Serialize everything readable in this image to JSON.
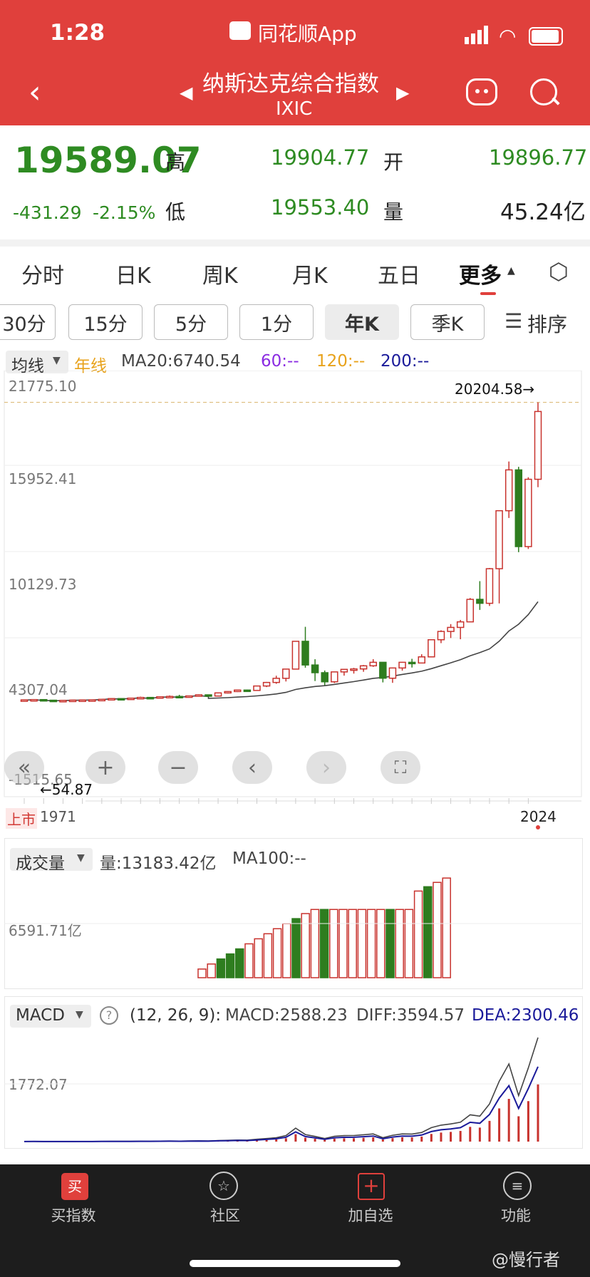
{
  "status": {
    "time": "1:28",
    "app": "同花顺App"
  },
  "header": {
    "title": "纳斯达克综合指数",
    "code": "IXIC"
  },
  "quote": {
    "price": "19589.07",
    "change": "-431.29",
    "pct": "-2.15%",
    "high_label": "高",
    "high": "19904.77",
    "low_label": "低",
    "low": "19553.40",
    "open_label": "开",
    "open": "19896.77",
    "vol_label": "量",
    "vol": "45.24亿"
  },
  "tabs": [
    "分时",
    "日K",
    "周K",
    "月K",
    "五日",
    "更多"
  ],
  "chips": [
    "30分",
    "15分",
    "5分",
    "1分",
    "年K",
    "季K"
  ],
  "sort_label": "排序",
  "ma": {
    "dropdown": "均线",
    "period": "年线",
    "ma20": "MA20:6740.54",
    "ma60": "60:--",
    "ma120": "120:--",
    "ma200": "200:--"
  },
  "kline": {
    "y_labels": [
      "21775.10",
      "15952.41",
      "10129.73",
      "4307.04",
      "-1515.65"
    ],
    "max_label": "20204.58→",
    "min_label": "←54.87",
    "ipo_label": "上市",
    "start_year": "1971",
    "end_year": "2024"
  },
  "volume": {
    "dropdown": "成交量",
    "label": "量:13183.42亿",
    "ma100": "MA100:--",
    "y_label": "6591.71亿"
  },
  "macd": {
    "dropdown": "MACD",
    "params": "(12, 26, 9):",
    "macd": "MACD:2588.23",
    "diff": "DIFF:3594.57",
    "dea": "DEA:2300.46",
    "y_label": "1772.07"
  },
  "nav": [
    {
      "label": "买指数",
      "icon": "buy-icon"
    },
    {
      "label": "社区",
      "icon": "community-icon"
    },
    {
      "label": "加自选",
      "icon": "add-watchlist-icon"
    },
    {
      "label": "功能",
      "icon": "menu-icon"
    }
  ],
  "watermark": "@慢行者",
  "colors": {
    "up": "#c8322d",
    "down": "#2e7d1f",
    "header": "#e0403c"
  },
  "chart_data": [
    {
      "type": "candlestick",
      "title": "年K",
      "x_range": [
        "1971",
        "2024"
      ],
      "ylim": [
        -1515.65,
        21775.1
      ],
      "max_marker": 20204.58,
      "min_marker": 54.87,
      "candles": [
        [
          1971,
          100,
          114,
          100,
          114
        ],
        [
          1972,
          114,
          134,
          114,
          134
        ],
        [
          1973,
          134,
          136,
          92,
          92
        ],
        [
          1974,
          92,
          92,
          55,
          60
        ],
        [
          1975,
          60,
          78,
          60,
          78
        ],
        [
          1976,
          78,
          98,
          78,
          98
        ],
        [
          1977,
          98,
          106,
          98,
          106
        ],
        [
          1978,
          106,
          120,
          106,
          118
        ],
        [
          1979,
          118,
          150,
          118,
          151
        ],
        [
          1980,
          151,
          208,
          151,
          202
        ],
        [
          1981,
          202,
          223,
          180,
          196
        ],
        [
          1982,
          196,
          240,
          160,
          232
        ],
        [
          1983,
          232,
          329,
          229,
          279
        ],
        [
          1984,
          279,
          288,
          225,
          247
        ],
        [
          1985,
          247,
          325,
          246,
          325
        ],
        [
          1986,
          325,
          411,
          323,
          349
        ],
        [
          1987,
          349,
          456,
          291,
          330
        ],
        [
          1988,
          330,
          397,
          330,
          381
        ],
        [
          1989,
          381,
          487,
          376,
          455
        ],
        [
          1990,
          455,
          470,
          322,
          374
        ],
        [
          1991,
          374,
          586,
          355,
          586
        ],
        [
          1992,
          586,
          676,
          546,
          677
        ],
        [
          1993,
          677,
          787,
          645,
          777
        ],
        [
          1994,
          777,
          803,
          693,
          752
        ],
        [
          1995,
          752,
          1070,
          740,
          1052
        ],
        [
          1996,
          1052,
          1328,
          978,
          1291
        ],
        [
          1997,
          1291,
          1745,
          1201,
          1570
        ],
        [
          1998,
          1570,
          2200,
          1357,
          2193
        ],
        [
          1999,
          2193,
          4069,
          2193,
          4069
        ],
        [
          2000,
          4069,
          5048,
          2288,
          2471
        ],
        [
          2001,
          2471,
          2859,
          1387,
          1950
        ],
        [
          2002,
          1950,
          2098,
          1108,
          1336
        ],
        [
          2003,
          1336,
          2009,
          1253,
          2003
        ],
        [
          2004,
          2003,
          2178,
          1752,
          2175
        ],
        [
          2005,
          2175,
          2278,
          1889,
          2205
        ],
        [
          2006,
          2205,
          2470,
          2012,
          2415
        ],
        [
          2007,
          2415,
          2861,
          2341,
          2652
        ],
        [
          2008,
          2652,
          2661,
          1295,
          1577
        ],
        [
          2009,
          1577,
          2295,
          1265,
          2269
        ],
        [
          2010,
          2269,
          2675,
          2091,
          2652
        ],
        [
          2011,
          2652,
          2887,
          2298,
          2605
        ],
        [
          2012,
          2605,
          3196,
          2603,
          3019
        ],
        [
          2013,
          3019,
          4177,
          3019,
          4176
        ],
        [
          2014,
          4176,
          4814,
          3946,
          4736
        ],
        [
          2015,
          4736,
          5231,
          4292,
          5007
        ],
        [
          2016,
          5007,
          5512,
          4209,
          5383
        ],
        [
          2017,
          5383,
          6994,
          5383,
          6903
        ],
        [
          2018,
          6903,
          8133,
          6190,
          6635
        ],
        [
          2019,
          6635,
          9022,
          6457,
          8973
        ],
        [
          2020,
          8973,
          12899,
          6631,
          12888
        ],
        [
          2021,
          12888,
          16212,
          12397,
          15645
        ],
        [
          2022,
          15645,
          15852,
          10088,
          10466
        ],
        [
          2023,
          10466,
          15150,
          10305,
          15011
        ],
        [
          2024,
          15011,
          20204,
          14477,
          19589
        ]
      ],
      "ma20_last": 6740.54
    },
    {
      "type": "bar",
      "title": "成交量",
      "ylabel": "",
      "y_label": "6591.71亿",
      "last": 13183.42
    },
    {
      "type": "line",
      "title": "MACD",
      "params": [
        12,
        26,
        9
      ],
      "macd": 2588.23,
      "diff": 3594.57,
      "dea": 2300.46,
      "y_label": 1772.07
    }
  ]
}
